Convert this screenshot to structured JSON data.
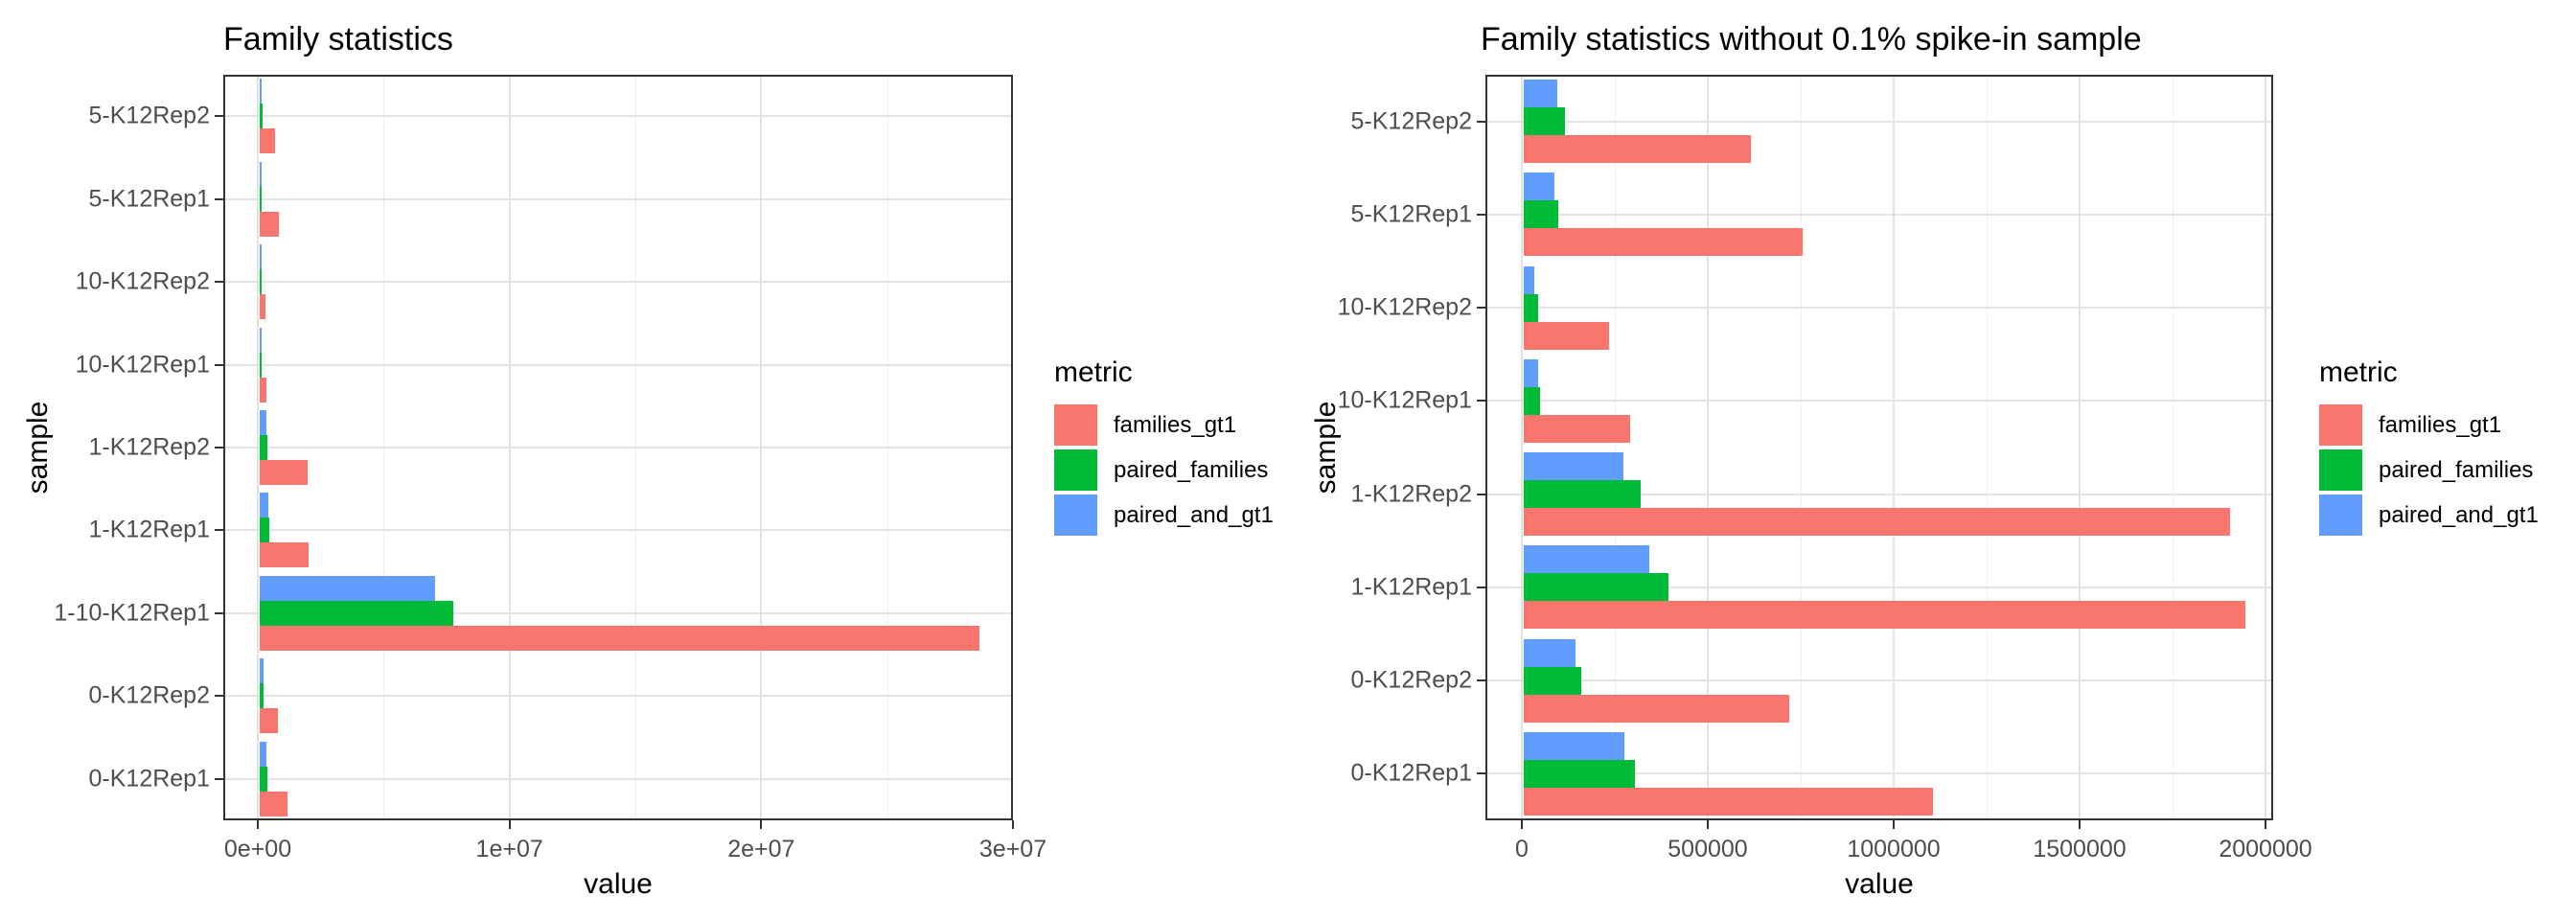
{
  "figure": {
    "background": "#ffffff",
    "panel_border_color": "#333333",
    "grid_major_color": "#e3e3e3",
    "grid_minor_color": "#efefef",
    "axis_text_color": "#4d4d4d"
  },
  "chart_data": [
    {
      "type": "bar",
      "orientation": "horizontal",
      "title": "Family statistics",
      "xlabel": "value",
      "ylabel": "sample",
      "legend_title": "metric",
      "legend_position": "right",
      "grid": true,
      "xlim": [
        0,
        30000000
      ],
      "x_ticks": [
        {
          "value": 0,
          "label": "0e+00"
        },
        {
          "value": 10000000,
          "label": "1e+07"
        },
        {
          "value": 20000000,
          "label": "2e+07"
        },
        {
          "value": 30000000,
          "label": "3e+07"
        }
      ],
      "categories": [
        "5-K12Rep2",
        "5-K12Rep1",
        "10-K12Rep2",
        "10-K12Rep1",
        "1-K12Rep2",
        "1-K12Rep1",
        "1-10-K12Rep1",
        "0-K12Rep2",
        "0-K12Rep1"
      ],
      "series": [
        {
          "name": "families_gt1",
          "color": "#F8766D",
          "values": [
            610000,
            750000,
            230000,
            285000,
            1900000,
            1940000,
            28600000,
            715000,
            1100000
          ]
        },
        {
          "name": "paired_families",
          "color": "#00BA38",
          "values": [
            112000,
            93000,
            38000,
            45000,
            315000,
            390000,
            7700000,
            155000,
            300000
          ]
        },
        {
          "name": "paired_and_gt1",
          "color": "#619CFF",
          "values": [
            90000,
            82000,
            29000,
            38000,
            268000,
            338000,
            6950000,
            140000,
            270000
          ]
        }
      ]
    },
    {
      "type": "bar",
      "orientation": "horizontal",
      "title": "Family statistics without 0.1% spike-in sample",
      "xlabel": "value",
      "ylabel": "sample",
      "legend_title": "metric",
      "legend_position": "right",
      "grid": true,
      "xlim": [
        0,
        2000000
      ],
      "x_ticks": [
        {
          "value": 0,
          "label": "0"
        },
        {
          "value": 500000,
          "label": "500000"
        },
        {
          "value": 1000000,
          "label": "1000000"
        },
        {
          "value": 1500000,
          "label": "1500000"
        },
        {
          "value": 2000000,
          "label": "2000000"
        }
      ],
      "categories": [
        "5-K12Rep2",
        "5-K12Rep1",
        "10-K12Rep2",
        "10-K12Rep1",
        "1-K12Rep2",
        "1-K12Rep1",
        "0-K12Rep2",
        "0-K12Rep1"
      ],
      "series": [
        {
          "name": "families_gt1",
          "color": "#F8766D",
          "values": [
            610000,
            750000,
            230000,
            285000,
            1900000,
            1940000,
            715000,
            1100000
          ]
        },
        {
          "name": "paired_families",
          "color": "#00BA38",
          "values": [
            112000,
            93000,
            38000,
            45000,
            315000,
            390000,
            155000,
            300000
          ]
        },
        {
          "name": "paired_and_gt1",
          "color": "#619CFF",
          "values": [
            90000,
            82000,
            29000,
            38000,
            268000,
            338000,
            140000,
            270000
          ]
        }
      ]
    }
  ]
}
